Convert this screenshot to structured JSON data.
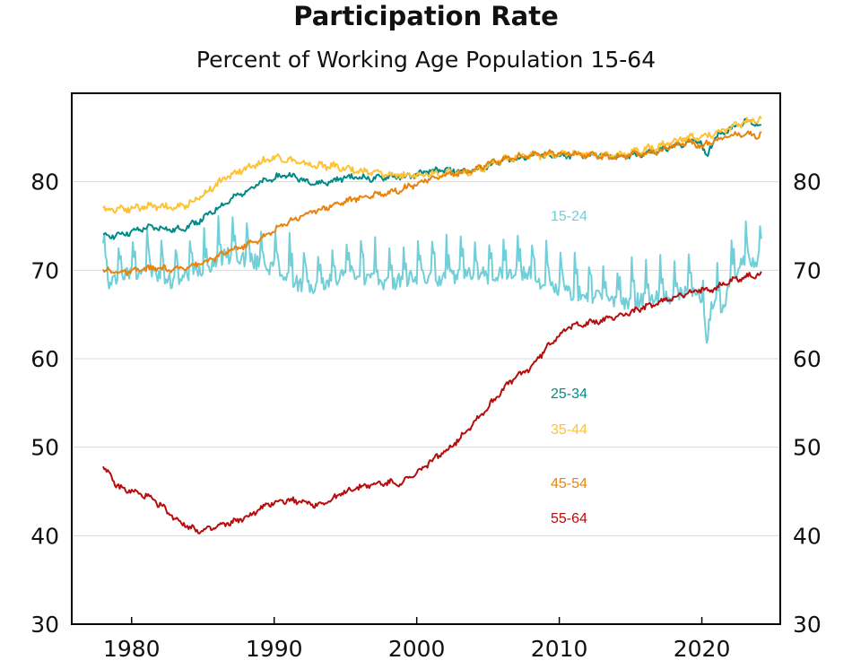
{
  "chart_data": {
    "type": "line",
    "title": "Participation Rate",
    "subtitle": "Percent of Working Age Population 15-64",
    "xlabel": "",
    "ylabel": "",
    "xlim": [
      1975.8,
      2025.5
    ],
    "ylim": [
      30,
      90
    ],
    "yticks": [
      30,
      40,
      50,
      60,
      70,
      80
    ],
    "xticks": [
      1980,
      1990,
      2000,
      2010,
      2020
    ],
    "grid": true,
    "legend": "inline",
    "series": [
      {
        "name": "15-24",
        "color": "#70cfd8",
        "x": [
          1978.0,
          1978.5,
          1979,
          1980,
          1981,
          1982,
          1983,
          1984,
          1985,
          1986,
          1987,
          1988,
          1989,
          1990,
          1991,
          1992,
          1993,
          1994,
          1995,
          1996,
          1997,
          1998,
          1999,
          2000,
          2001,
          2002,
          2003,
          2004,
          2005,
          2006,
          2007,
          2008,
          2009,
          2010,
          2011,
          2012,
          2013,
          2014,
          2015,
          2016,
          2017,
          2018,
          2019,
          2019.9,
          2020.3,
          2020.6,
          2021,
          2021.5,
          2022,
          2023,
          2024,
          2024.2
        ],
        "y": [
          70.5,
          69.0,
          70.0,
          70.5,
          71.0,
          70.0,
          69.5,
          70.2,
          71.0,
          72.0,
          72.5,
          72.0,
          71.5,
          71.0,
          70.0,
          69.0,
          68.8,
          69.5,
          70.5,
          70.2,
          69.5,
          69.3,
          69.5,
          70.0,
          70.0,
          69.8,
          70.2,
          70.5,
          70.0,
          70.2,
          70.5,
          70.2,
          69.2,
          68.5,
          68.2,
          67.8,
          67.5,
          67.2,
          67.3,
          67.5,
          67.5,
          67.8,
          68.0,
          67.8,
          62.5,
          66.0,
          67.5,
          66.5,
          70.0,
          71.5,
          72.0,
          71.5
        ]
      },
      {
        "name": "25-34",
        "color": "#008b86",
        "x": [
          1978.0,
          1979,
          1980,
          1981,
          1982,
          1983,
          1984,
          1985,
          1986,
          1987,
          1988,
          1989,
          1990,
          1991,
          1992,
          1993,
          1994,
          1995,
          1996,
          1997,
          1998,
          1999,
          2000,
          2001,
          2002,
          2003,
          2004,
          2005,
          2006,
          2007,
          2008,
          2009,
          2010,
          2011,
          2012,
          2013,
          2014,
          2015,
          2016,
          2017,
          2018,
          2019,
          2019.9,
          2020.3,
          2020.6,
          2021,
          2022,
          2023,
          2024,
          2024.2
        ],
        "y": [
          73.8,
          74.0,
          74.3,
          74.8,
          74.8,
          74.5,
          75.0,
          75.8,
          77.0,
          78.0,
          79.0,
          79.8,
          80.5,
          80.8,
          80.2,
          79.8,
          80.0,
          80.5,
          80.5,
          80.3,
          80.6,
          80.5,
          80.8,
          81.2,
          81.3,
          81.2,
          81.2,
          81.8,
          82.4,
          82.6,
          83.0,
          83.0,
          82.8,
          83.0,
          83.0,
          83.0,
          82.8,
          83.0,
          83.2,
          83.5,
          84.0,
          84.4,
          84.8,
          82.5,
          84.0,
          85.2,
          86.0,
          86.8,
          86.5,
          86.5
        ]
      },
      {
        "name": "35-44",
        "color": "#ffc233",
        "x": [
          1978.0,
          1979,
          1980,
          1981,
          1982,
          1983,
          1984,
          1985,
          1986,
          1987,
          1988,
          1989,
          1990,
          1991,
          1992,
          1993,
          1994,
          1995,
          1996,
          1997,
          1998,
          1999,
          2000,
          2001,
          2002,
          2003,
          2004,
          2005,
          2006,
          2007,
          2008,
          2009,
          2010,
          2011,
          2012,
          2013,
          2014,
          2015,
          2016,
          2017,
          2018,
          2019,
          2020,
          2021,
          2022,
          2023,
          2024,
          2024.2
        ],
        "y": [
          76.8,
          77.0,
          77.0,
          77.2,
          77.3,
          77.0,
          77.5,
          78.5,
          79.8,
          80.8,
          81.5,
          82.2,
          82.8,
          82.5,
          82.0,
          81.8,
          81.8,
          81.5,
          81.2,
          81.0,
          80.8,
          80.7,
          80.8,
          81.0,
          81.0,
          81.0,
          81.2,
          81.8,
          82.5,
          82.8,
          83.0,
          83.0,
          83.0,
          83.2,
          83.2,
          83.0,
          83.0,
          83.3,
          83.6,
          84.0,
          84.5,
          85.0,
          85.0,
          85.5,
          86.0,
          86.8,
          87.0,
          87.0
        ]
      },
      {
        "name": "45-54",
        "color": "#e8830d",
        "x": [
          1978.0,
          1979,
          1980,
          1981,
          1982,
          1983,
          1984,
          1985,
          1986,
          1987,
          1988,
          1989,
          1990,
          1991,
          1992,
          1993,
          1994,
          1995,
          1996,
          1997,
          1998,
          1999,
          2000,
          2001,
          2002,
          2003,
          2004,
          2005,
          2006,
          2007,
          2008,
          2009,
          2010,
          2011,
          2012,
          2013,
          2014,
          2015,
          2016,
          2017,
          2018,
          2019,
          2020,
          2021,
          2022,
          2023,
          2024,
          2024.2
        ],
        "y": [
          70.0,
          69.8,
          69.8,
          70.2,
          70.2,
          70.0,
          70.5,
          70.8,
          71.5,
          72.3,
          72.8,
          73.5,
          74.5,
          75.5,
          76.2,
          76.8,
          77.3,
          77.8,
          78.2,
          78.5,
          78.8,
          79.2,
          79.8,
          80.3,
          80.8,
          81.0,
          81.3,
          82.0,
          82.5,
          82.8,
          83.0,
          83.2,
          83.3,
          83.2,
          83.0,
          82.8,
          82.8,
          83.0,
          83.2,
          83.5,
          84.0,
          84.5,
          84.0,
          84.8,
          85.2,
          85.5,
          85.2,
          85.5
        ]
      },
      {
        "name": "55-64",
        "color": "#b60d0d",
        "x": [
          1978.0,
          1978.5,
          1979,
          1980,
          1981,
          1982,
          1983,
          1984,
          1985,
          1986,
          1987,
          1988,
          1989,
          1990,
          1991,
          1992,
          1993,
          1994,
          1995,
          1996,
          1997,
          1998,
          1999,
          2000,
          2001,
          2002,
          2003,
          2004,
          2005,
          2006,
          2007,
          2008,
          2009,
          2010,
          2011,
          2012,
          2013,
          2014,
          2015,
          2016,
          2017,
          2018,
          2019,
          2020,
          2021,
          2022,
          2023,
          2024,
          2024.2
        ],
        "y": [
          47.8,
          46.8,
          45.5,
          45.0,
          44.5,
          43.5,
          42.0,
          41.0,
          40.5,
          41.0,
          41.5,
          42.0,
          43.0,
          43.8,
          44.0,
          43.8,
          43.5,
          44.0,
          45.0,
          45.5,
          45.8,
          46.0,
          46.0,
          47.0,
          48.5,
          49.5,
          51.0,
          52.8,
          54.5,
          56.5,
          58.0,
          59.0,
          61.0,
          62.8,
          63.8,
          64.0,
          64.3,
          64.8,
          65.2,
          65.8,
          66.3,
          67.0,
          67.3,
          67.8,
          68.0,
          68.8,
          69.2,
          69.5,
          69.5
        ]
      }
    ]
  }
}
